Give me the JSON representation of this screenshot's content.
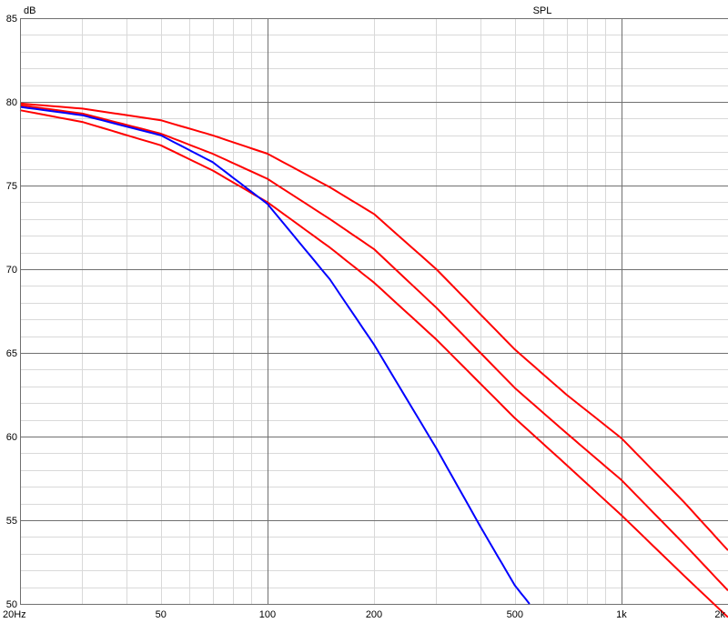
{
  "chart_data": {
    "type": "line",
    "title": "SPL",
    "ylabel": "dB",
    "xlabel": "",
    "x_scale": "log",
    "xlim": [
      20,
      2000
    ],
    "ylim": [
      50,
      85
    ],
    "grid": true,
    "x_major_ticks": [
      {
        "value": 20,
        "label": "20Hz"
      },
      {
        "value": 50,
        "label": "50"
      },
      {
        "value": 100,
        "label": "100"
      },
      {
        "value": 200,
        "label": "200"
      },
      {
        "value": 500,
        "label": "500"
      },
      {
        "value": 1000,
        "label": "1k"
      },
      {
        "value": 2000,
        "label": "2k"
      }
    ],
    "y_ticks": [
      {
        "value": 50,
        "label": "50"
      },
      {
        "value": 55,
        "label": "55"
      },
      {
        "value": 60,
        "label": "60"
      },
      {
        "value": 65,
        "label": "65"
      },
      {
        "value": 70,
        "label": "70"
      },
      {
        "value": 75,
        "label": "75"
      },
      {
        "value": 80,
        "label": "80"
      },
      {
        "value": 85,
        "label": "85"
      }
    ],
    "series": [
      {
        "color": "#ff0000",
        "x": [
          20,
          30,
          50,
          70,
          100,
          150,
          200,
          300,
          500,
          700,
          1000,
          1500,
          2000
        ],
        "y": [
          79.9,
          79.6,
          78.9,
          78.0,
          76.9,
          74.9,
          73.3,
          70.0,
          65.2,
          62.5,
          59.9,
          56.1,
          53.2
        ]
      },
      {
        "color": "#ff0000",
        "x": [
          20,
          30,
          50,
          70,
          100,
          150,
          200,
          300,
          500,
          700,
          1000,
          1500,
          2000
        ],
        "y": [
          79.8,
          79.3,
          78.1,
          76.9,
          75.4,
          73.0,
          71.2,
          67.7,
          62.9,
          60.2,
          57.4,
          53.6,
          50.8
        ]
      },
      {
        "color": "#ff0000",
        "x": [
          20,
          30,
          50,
          70,
          100,
          150,
          200,
          300,
          500,
          700,
          1000,
          1500,
          2000
        ],
        "y": [
          79.5,
          78.8,
          77.4,
          75.9,
          74.0,
          71.3,
          69.2,
          65.8,
          61.1,
          58.3,
          55.3,
          51.7,
          49.2
        ]
      },
      {
        "color": "#0000ff",
        "x": [
          20,
          30,
          50,
          70,
          100,
          150,
          200,
          300,
          400,
          500,
          550
        ],
        "y": [
          79.7,
          79.2,
          78.0,
          76.4,
          73.9,
          69.4,
          65.5,
          59.3,
          54.6,
          51.1,
          50.0
        ]
      }
    ]
  }
}
